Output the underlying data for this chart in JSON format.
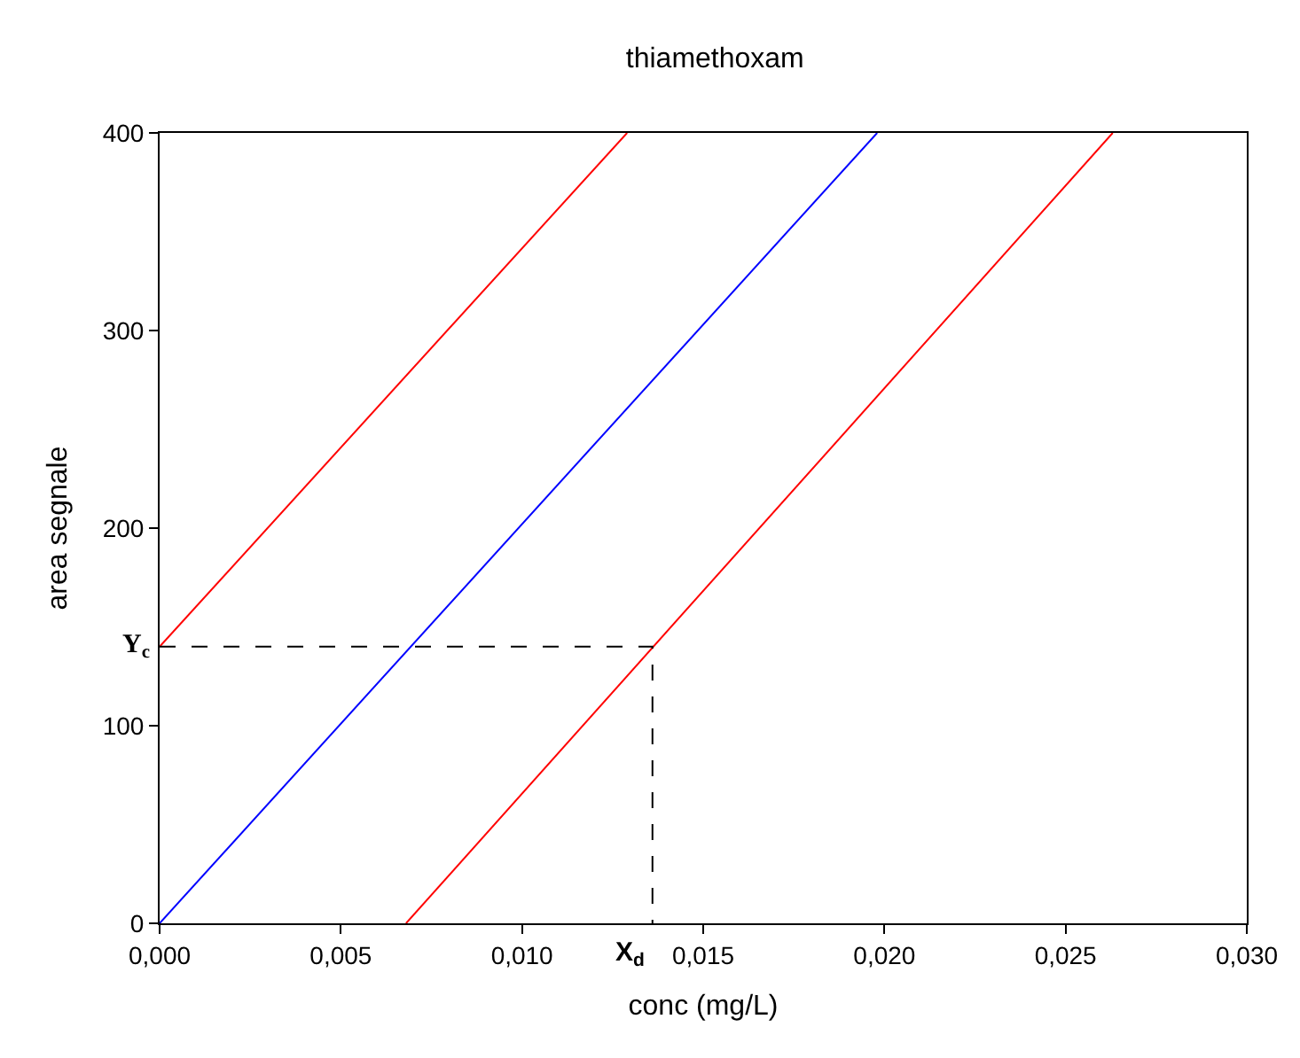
{
  "chart_data": {
    "type": "line",
    "title": "thiamethoxam",
    "xlabel": "conc (mg/L)",
    "ylabel": "area segnale",
    "series": [
      {
        "color": "#ff0000",
        "x": [
          0,
          0.0129
        ],
        "values": [
          140,
          400
        ]
      },
      {
        "color": "#0000ff",
        "x": [
          0,
          0.0198
        ],
        "values": [
          0,
          400
        ]
      },
      {
        "color": "#ff0000",
        "x": [
          0.0068,
          0.0263
        ],
        "values": [
          0,
          400
        ]
      },
      {
        "color": "#000000",
        "line_style": "dashed",
        "x": [
          0,
          0.0136,
          0.0136
        ],
        "values": [
          140,
          140,
          0
        ]
      }
    ],
    "annotations": [
      {
        "text": "Y$_{c}$",
        "x": 0,
        "y": 140
      },
      {
        "text": "X$_{d}$",
        "x": 0.0136,
        "y": 0
      }
    ],
    "xlim": [
      0,
      0.03
    ],
    "ylim": [
      0,
      400
    ],
    "xticks": [
      {
        "value": 0,
        "label": "0,000"
      },
      {
        "value": 0.005,
        "label": "0,005"
      },
      {
        "value": 0.01,
        "label": "0,010"
      },
      {
        "value": 0.015,
        "label": "0,015"
      },
      {
        "value": 0.02,
        "label": "0,020"
      },
      {
        "value": 0.025,
        "label": "0,025"
      },
      {
        "value": 0.03,
        "label": "0,030"
      }
    ],
    "yticks": [
      0,
      100,
      200,
      300,
      400
    ],
    "marker": "none",
    "line_style": "solid"
  }
}
